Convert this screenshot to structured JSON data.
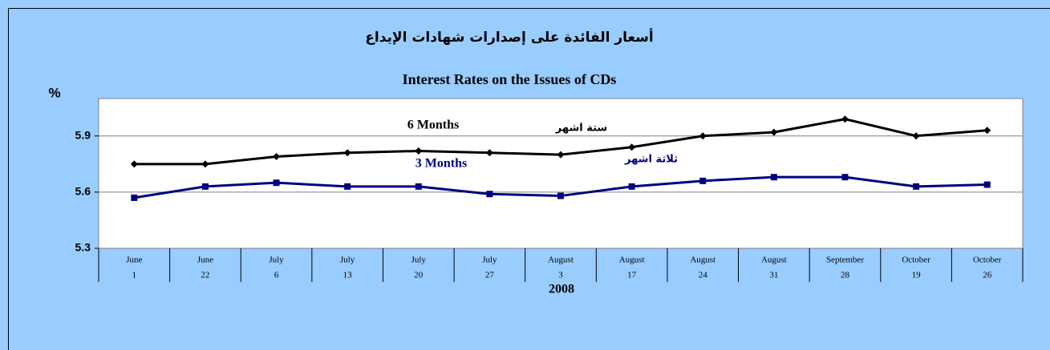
{
  "chart_data": {
    "type": "line",
    "title": "أسعار الفائدة على إصدارات شهادات الإيداع",
    "subtitle": "Interest Rates on the Issues of CDs",
    "y_label": "%",
    "x_label": "2008",
    "categories": [
      [
        "June",
        "1"
      ],
      [
        "June",
        "22"
      ],
      [
        "July",
        "6"
      ],
      [
        "July",
        "13"
      ],
      [
        "July",
        "20"
      ],
      [
        "July",
        "27"
      ],
      [
        "August",
        "3"
      ],
      [
        "August",
        "17"
      ],
      [
        "August",
        "24"
      ],
      [
        "August",
        "31"
      ],
      [
        "September",
        "28"
      ],
      [
        "October",
        "19"
      ],
      [
        "October",
        "26"
      ]
    ],
    "series": [
      {
        "name": "6 Months",
        "color": "#000000",
        "marker": "diamond",
        "values": [
          5.75,
          5.75,
          5.79,
          5.81,
          5.82,
          5.81,
          5.8,
          5.84,
          5.9,
          5.92,
          5.99,
          5.9,
          5.93
        ]
      },
      {
        "name": "3 Months",
        "color": "#000080",
        "marker": "square",
        "values": [
          5.57,
          5.63,
          5.65,
          5.63,
          5.63,
          5.59,
          5.58,
          5.63,
          5.66,
          5.68,
          5.68,
          5.63,
          5.64
        ]
      }
    ],
    "annotations": [
      {
        "text": "ستة اشهر",
        "color": "#000000"
      },
      {
        "text": "ثلاثة اشهر",
        "color": "#000080"
      }
    ],
    "ylim": [
      5.3,
      6.1
    ],
    "yticks": [
      5.3,
      5.6,
      5.9
    ],
    "grid": true
  }
}
